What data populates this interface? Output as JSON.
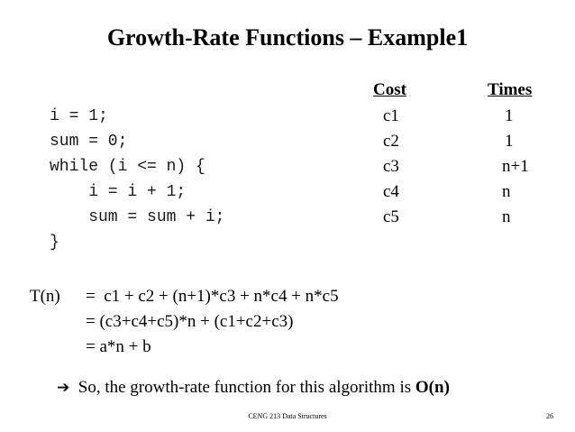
{
  "slide": {
    "title": "Growth-Rate Functions – Example1",
    "headers": {
      "cost": "Cost",
      "times": "Times"
    },
    "rows": [
      {
        "code": "i = 1;",
        "cost": "c1",
        "times": "1"
      },
      {
        "code": "sum = 0;",
        "cost": "c2",
        "times": "1"
      },
      {
        "code": "while (i <= n) {",
        "cost": "c3",
        "times": "n+1"
      },
      {
        "code": "    i = i + 1;",
        "cost": "c4",
        "times": "n"
      },
      {
        "code": "    sum = sum + i;",
        "cost": "c5",
        "times": "n"
      },
      {
        "code": "}",
        "cost": "",
        "times": ""
      }
    ],
    "tn_label": "T(n)",
    "equations": [
      "=  c1 + c2 + (n+1)*c3 + n*c4 + n*c5",
      "= (c3+c4+c5)*n + (c1+c2+c3)",
      "= a*n + b"
    ],
    "conclusion_arrow": "➔",
    "conclusion_text": "So, the growth-rate function for this algorithm is ",
    "conclusion_bold": "O(n)",
    "footer_center": "CENG 213 Data Structures",
    "page_number": "26"
  }
}
